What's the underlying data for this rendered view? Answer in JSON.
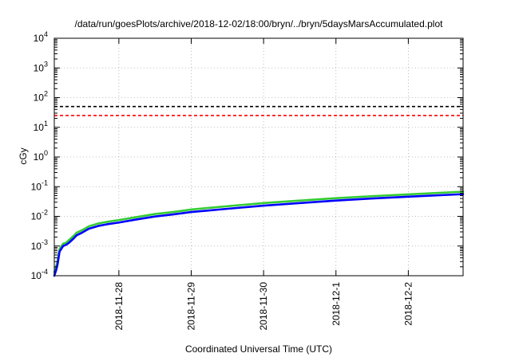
{
  "chart_data": {
    "type": "line",
    "title": "/data/run/goesPlots/archive/2018-12-02/18:00/bryn/../bryn/5daysMarsAccumulated.plot",
    "xlabel": "Coordinated Universal Time (UTC)",
    "ylabel": "cGy",
    "x_axis": {
      "type": "time",
      "range": [
        "2018-11-27T02:35",
        "2018-12-02T18:10"
      ]
    },
    "y_axis": {
      "scale": "log",
      "range": [
        0.0001,
        10000
      ]
    },
    "grid": true,
    "legend": "none",
    "x_ticks": [
      {
        "x": "2018-11-28",
        "label": "2018-11-28"
      },
      {
        "x": "2018-11-29",
        "label": "2018-11-29"
      },
      {
        "x": "2018-11-30",
        "label": "2018-11-30"
      },
      {
        "x": "2018-12-01",
        "label": "2018-12-1"
      },
      {
        "x": "2018-12-02",
        "label": "2018-12-2"
      }
    ],
    "y_ticks": [
      {
        "value": 0.0001,
        "base": "10",
        "exp": "-4"
      },
      {
        "value": 0.001,
        "base": "10",
        "exp": "-3"
      },
      {
        "value": 0.01,
        "base": "10",
        "exp": "-2"
      },
      {
        "value": 0.1,
        "base": "10",
        "exp": "-1"
      },
      {
        "value": 1,
        "base": "10",
        "exp": "0"
      },
      {
        "value": 10,
        "base": "10",
        "exp": "1"
      },
      {
        "value": 100,
        "base": "10",
        "exp": "2"
      },
      {
        "value": 1000,
        "base": "10",
        "exp": "3"
      },
      {
        "value": 10000,
        "base": "10",
        "exp": "4"
      }
    ],
    "reference_lines": [
      {
        "value": 50,
        "color": "#000000",
        "style": "dashed"
      },
      {
        "value": 25,
        "color": "#ff0000",
        "style": "dashed"
      }
    ],
    "series": [
      {
        "color": "#33cc33",
        "points": [
          [
            "2018-11-27T02:35",
            0.00013
          ],
          [
            "2018-11-27T03:10",
            0.0002
          ],
          [
            "2018-11-27T03:40",
            0.0003
          ],
          [
            "2018-11-27T04:20",
            0.0008
          ],
          [
            "2018-11-27T05:30",
            0.0012
          ],
          [
            "2018-11-27T06:30",
            0.0013
          ],
          [
            "2018-11-27T07:30",
            0.0016
          ],
          [
            "2018-11-27T09:00",
            0.0022
          ],
          [
            "2018-11-27T10:00",
            0.0028
          ],
          [
            "2018-11-27T12:00",
            0.0035
          ],
          [
            "2018-11-27T14:00",
            0.0046
          ],
          [
            "2018-11-27T17:00",
            0.0057
          ],
          [
            "2018-11-27T20:00",
            0.0065
          ],
          [
            "2018-11-28T00:00",
            0.0075
          ],
          [
            "2018-11-28T06:00",
            0.0095
          ],
          [
            "2018-11-28T12:00",
            0.012
          ],
          [
            "2018-11-28T18:00",
            0.014
          ],
          [
            "2018-11-29T00:00",
            0.017
          ],
          [
            "2018-11-29T12:00",
            0.022
          ],
          [
            "2018-11-30T00:00",
            0.028
          ],
          [
            "2018-11-30T12:00",
            0.034
          ],
          [
            "2018-12-01T00:00",
            0.041
          ],
          [
            "2018-12-01T12:00",
            0.048
          ],
          [
            "2018-12-02T00:00",
            0.055
          ],
          [
            "2018-12-02T18:10",
            0.068
          ]
        ]
      },
      {
        "color": "#0000ff",
        "points": [
          [
            "2018-11-27T02:35",
            0.0001
          ],
          [
            "2018-11-27T03:10",
            0.00015
          ],
          [
            "2018-11-27T03:40",
            0.00024
          ],
          [
            "2018-11-27T04:20",
            0.00065
          ],
          [
            "2018-11-27T05:30",
            0.001
          ],
          [
            "2018-11-27T06:30",
            0.0011
          ],
          [
            "2018-11-27T07:30",
            0.0013
          ],
          [
            "2018-11-27T09:00",
            0.0018
          ],
          [
            "2018-11-27T10:00",
            0.0023
          ],
          [
            "2018-11-27T12:00",
            0.0029
          ],
          [
            "2018-11-27T14:00",
            0.0038
          ],
          [
            "2018-11-27T17:00",
            0.0047
          ],
          [
            "2018-11-27T20:00",
            0.0054
          ],
          [
            "2018-11-28T00:00",
            0.0062
          ],
          [
            "2018-11-28T06:00",
            0.0079
          ],
          [
            "2018-11-28T12:00",
            0.0099
          ],
          [
            "2018-11-28T18:00",
            0.0116
          ],
          [
            "2018-11-29T00:00",
            0.014
          ],
          [
            "2018-11-29T12:00",
            0.018
          ],
          [
            "2018-11-30T00:00",
            0.023
          ],
          [
            "2018-11-30T12:00",
            0.028
          ],
          [
            "2018-12-01T00:00",
            0.034
          ],
          [
            "2018-12-01T12:00",
            0.04
          ],
          [
            "2018-12-02T00:00",
            0.046
          ],
          [
            "2018-12-02T18:10",
            0.056
          ]
        ]
      }
    ]
  }
}
